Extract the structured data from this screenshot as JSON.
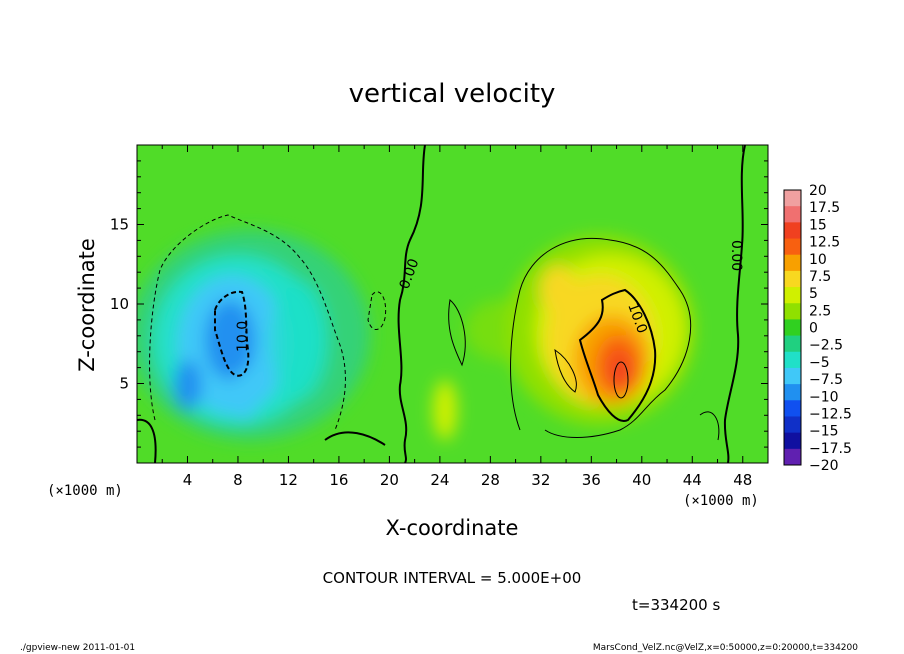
{
  "chart_data": {
    "type": "heatmap",
    "title": "vertical velocity",
    "xlabel": "X-coordinate",
    "ylabel": "Z-coordinate",
    "x_unit": "(×1000 m)",
    "z_unit": "(×1000 m)",
    "xlim": [
      0,
      50
    ],
    "ylim": [
      0,
      20
    ],
    "x_ticks": [
      "4",
      "8",
      "12",
      "16",
      "20",
      "24",
      "28",
      "32",
      "36",
      "40",
      "44",
      "48"
    ],
    "x_tick_values": [
      4,
      8,
      12,
      16,
      20,
      24,
      28,
      32,
      36,
      40,
      44,
      48
    ],
    "y_ticks": [
      "5",
      "10",
      "15"
    ],
    "y_tick_values": [
      5,
      10,
      15
    ],
    "colorbar": {
      "labels": [
        "20",
        "17.5",
        "15",
        "12.5",
        "10",
        "7.5",
        "5",
        "2.5",
        "0",
        "−2.5",
        "−5",
        "−7.5",
        "−10",
        "−12.5",
        "−15",
        "−17.5",
        "−20"
      ],
      "values": [
        20,
        17.5,
        15,
        12.5,
        10,
        7.5,
        5,
        2.5,
        0,
        -2.5,
        -5,
        -7.5,
        -10,
        -12.5,
        -15,
        -17.5,
        -20
      ],
      "colors": [
        "#f0a0a0",
        "#f07070",
        "#f04020",
        "#f86010",
        "#f8a000",
        "#f8d820",
        "#d0f000",
        "#90e000",
        "#30d020",
        "#20d080",
        "#20e0c8",
        "#40c8f8",
        "#2090f0",
        "#1050f0",
        "#1030c8",
        "#1010a0",
        "#6020b0"
      ]
    },
    "features": [
      {
        "kind": "downdraft",
        "x_center": 8,
        "z_center": 8,
        "min_value": -12.5
      },
      {
        "kind": "updraft",
        "x_center": 38,
        "z_center": 6,
        "max_value": 15
      }
    ],
    "contour_labels": [
      "0.00",
      "0.00",
      "10.0",
      "10.0"
    ]
  },
  "annotations": {
    "contour_interval": "CONTOUR INTERVAL = 5.000E+00",
    "time": "t=334200 s",
    "program": "./gpview-new   2011-01-01",
    "file": "MarsCond_VelZ.nc@VelZ,x=0:50000,z=0:20000,t=334200"
  }
}
